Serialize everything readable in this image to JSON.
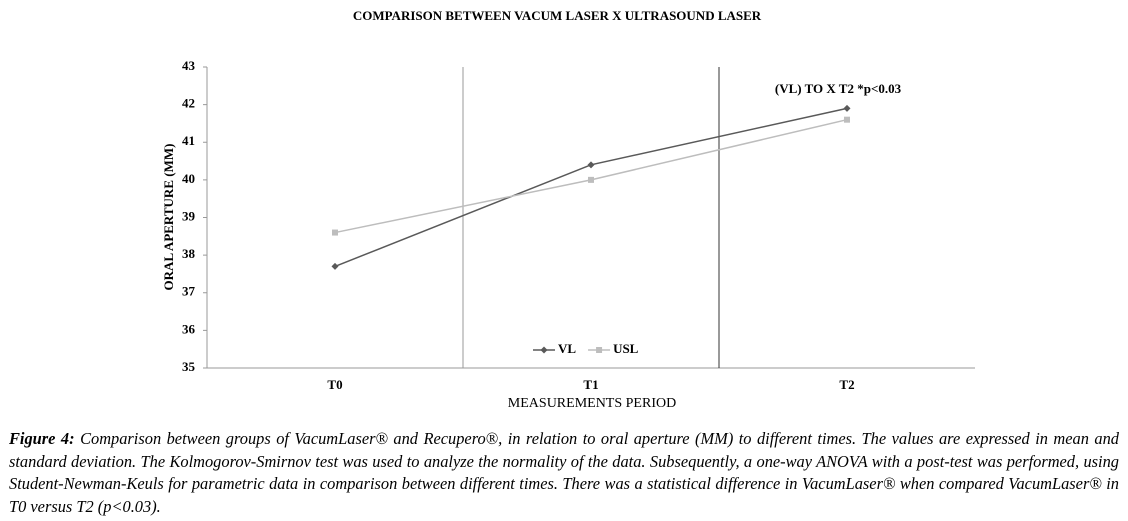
{
  "chart_data": {
    "type": "line",
    "title": "COMPARISON BETWEEN VACUM LASER X ULTRASOUND LASER",
    "y_label": "ORAL APERTURE (MM)",
    "x_label": "MEASUREMENTS PERIOD",
    "annotation": "(VL) TO X T2 *p<0.03",
    "categories": [
      "T0",
      "T1",
      "T2"
    ],
    "series": [
      {
        "name": "VL",
        "color": "#595959",
        "marker": "diamond",
        "values": [
          37.7,
          40.4,
          41.9
        ]
      },
      {
        "name": "USL",
        "color": "#bdbdbd",
        "marker": "square",
        "values": [
          38.6,
          40.0,
          41.6
        ]
      }
    ],
    "ylim": [
      35,
      43
    ],
    "yticks": [
      35,
      36,
      37,
      38,
      39,
      40,
      41,
      42,
      43
    ],
    "legend": "bottom"
  },
  "caption": {
    "label": "Figure 4:",
    "text": "Comparison between groups of VacumLaser® and Recupero®, in relation to oral aperture (MM) to different times. The values are expressed in mean and standard deviation. The Kolmogorov-Smirnov test was used to analyze the normality of the data. Subsequently, a one-way ANOVA with a post-test was performed, using Student-Newman-Keuls for parametric data in comparison between different times. There was a statistical difference in VacumLaser® when compared VacumLaser® in T0 versus T2 (p<0.03)."
  }
}
